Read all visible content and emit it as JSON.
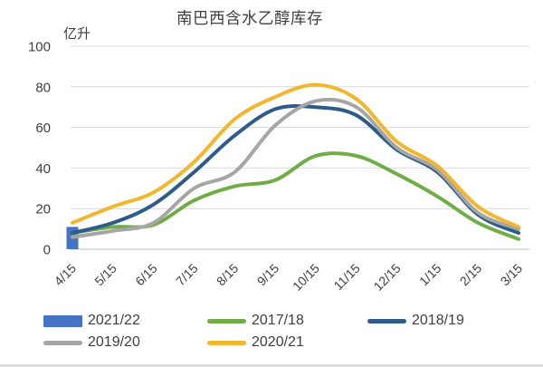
{
  "chart": {
    "title": "南巴西含水乙醇库存",
    "unit": "亿升"
  },
  "chart_data": {
    "type": "combo-bar-line",
    "title": "南巴西含水乙醇库存",
    "ylabel": "亿升",
    "categories": [
      "4/15",
      "5/15",
      "6/15",
      "7/15",
      "8/15",
      "9/15",
      "10/15",
      "11/15",
      "12/15",
      "1/15",
      "2/15",
      "3/15"
    ],
    "yticks": [
      0,
      20,
      40,
      60,
      80,
      100
    ],
    "ylim": [
      0,
      100
    ],
    "grid": true,
    "legend_position": "bottom-left",
    "series": [
      {
        "name": "2021/22",
        "type": "bar",
        "color": "#4472C4",
        "values": [
          11,
          null,
          null,
          null,
          null,
          null,
          null,
          null,
          null,
          null,
          null,
          null
        ]
      },
      {
        "name": "2017/18",
        "type": "line",
        "color": "#70AD47",
        "values": [
          8,
          11,
          12,
          24,
          31,
          34,
          46,
          46,
          37,
          26,
          13,
          5
        ]
      },
      {
        "name": "2018/19",
        "type": "line",
        "color": "#2E5C8A",
        "values": [
          8,
          13,
          22,
          38,
          56,
          69,
          70,
          66,
          49,
          38,
          17,
          8
        ]
      },
      {
        "name": "2019/20",
        "type": "line",
        "color": "#A6A6A6",
        "values": [
          6,
          9,
          13,
          30,
          38,
          61,
          73,
          70,
          50,
          39,
          18,
          10
        ]
      },
      {
        "name": "2020/21",
        "type": "line",
        "color": "#F0B72F",
        "values": [
          13,
          21,
          28,
          43,
          64,
          75,
          81,
          74,
          53,
          41,
          21,
          11
        ]
      }
    ]
  },
  "colors": {
    "text": "#3F3F3F",
    "grid": "#D9D9D9",
    "axis": "#BFBFBF",
    "background": "#FFFFFF"
  }
}
